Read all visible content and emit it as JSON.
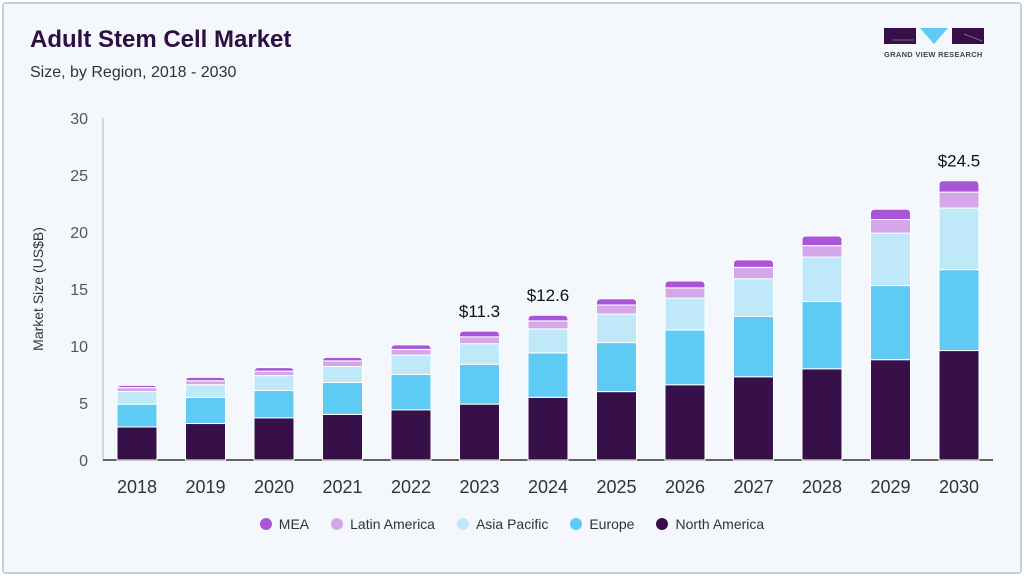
{
  "header": {
    "title": "Adult Stem Cell Market",
    "subtitle": "Size, by Region, 2018 - 2030"
  },
  "logo": {
    "text": "GRAND VIEW RESEARCH"
  },
  "chart_data": {
    "type": "bar",
    "stacked": true,
    "title": "Adult Stem Cell Market",
    "subtitle": "Size, by Region, 2018 - 2030",
    "xlabel": "",
    "ylabel": "Market Size (US$B)",
    "ylim": [
      0,
      30
    ],
    "yticks": [
      "0",
      "5",
      "10",
      "15",
      "20",
      "25",
      "30"
    ],
    "grid": false,
    "legend_position": "bottom",
    "categories": [
      "2018",
      "2019",
      "2020",
      "2021",
      "2022",
      "2023",
      "2024",
      "2025",
      "2026",
      "2027",
      "2028",
      "2029",
      "2030"
    ],
    "series": [
      {
        "name": "North America",
        "color": "#37104a",
        "values": [
          2.9,
          3.2,
          3.7,
          4.0,
          4.4,
          4.9,
          5.5,
          6.0,
          6.6,
          7.3,
          8.0,
          8.8,
          9.6
        ]
      },
      {
        "name": "Europe",
        "color": "#5ecbf4",
        "values": [
          2.0,
          2.3,
          2.4,
          2.8,
          3.1,
          3.5,
          3.9,
          4.3,
          4.8,
          5.3,
          5.9,
          6.5,
          7.1
        ]
      },
      {
        "name": "Asia Pacific",
        "color": "#bfe8f8",
        "values": [
          1.1,
          1.1,
          1.3,
          1.4,
          1.7,
          1.8,
          2.1,
          2.5,
          2.8,
          3.3,
          3.9,
          4.6,
          5.4
        ]
      },
      {
        "name": "Latin America",
        "color": "#d4a8e8",
        "values": [
          0.35,
          0.35,
          0.4,
          0.5,
          0.5,
          0.6,
          0.7,
          0.8,
          0.9,
          1.0,
          1.0,
          1.2,
          1.4
        ]
      },
      {
        "name": "MEA",
        "color": "#a855d6",
        "values": [
          0.2,
          0.3,
          0.3,
          0.3,
          0.4,
          0.5,
          0.5,
          0.55,
          0.6,
          0.65,
          0.85,
          0.9,
          1.0
        ]
      }
    ],
    "annotations": [
      {
        "category": "2023",
        "text": "$11.3"
      },
      {
        "category": "2024",
        "text": "$12.6"
      },
      {
        "category": "2030",
        "text": "$24.5"
      }
    ]
  }
}
